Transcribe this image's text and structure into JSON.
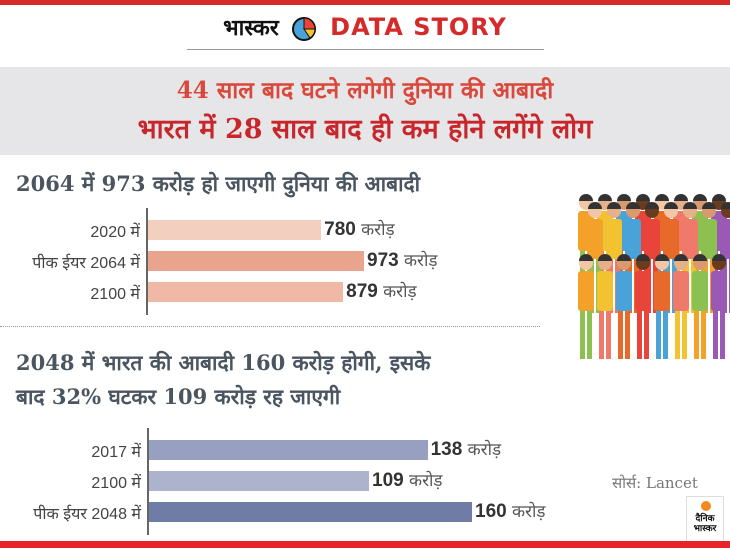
{
  "header": {
    "brand_hindi": "भास्कर",
    "brand_english": "DATA STORY",
    "logo_icon": "pie-chart-icon"
  },
  "banner": {
    "title1": "44 साल बाद घटने लगेगी दुनिया की आबादी",
    "title2": "भारत में 28 साल बाद ही कम होने लगेंगे लोग"
  },
  "colors": {
    "accent": "#d42a2a",
    "world_bars": [
      "#f3cfc0",
      "#e9a48e",
      "#efb9a5"
    ],
    "india_bars": [
      "#97a0c1",
      "#adb3cd",
      "#6f7ca5"
    ]
  },
  "chart_data": [
    {
      "type": "bar",
      "orientation": "horizontal",
      "title": "2064 में 973 करोड़ हो जाएगी दुनिया की आबादी",
      "categories": [
        "2020 में",
        "पीक ईयर 2064 में",
        "2100 में"
      ],
      "values": [
        780,
        973,
        879
      ],
      "unit": "करोड़",
      "xlim": [
        0,
        973
      ]
    },
    {
      "type": "bar",
      "orientation": "horizontal",
      "title_line1": "2048 में भारत की आबादी 160 करोड़ होगी, इसके",
      "title_line2": "बाद 32% घटकर 109 करोड़ रह जाएगी",
      "categories": [
        "2017 में",
        "2100 में",
        "पीक ईयर 2048 में"
      ],
      "values": [
        138,
        109,
        160
      ],
      "unit": "करोड़",
      "xlim": [
        0,
        160
      ]
    }
  ],
  "footer": {
    "source": "सोर्स: Lancet",
    "publisher_logo": "दैनिक भास्कर"
  }
}
